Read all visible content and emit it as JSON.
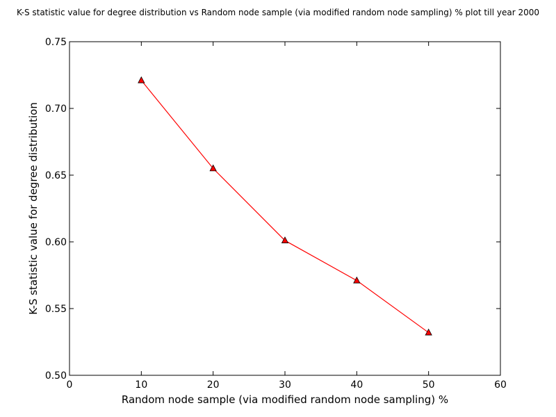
{
  "chart_data": {
    "type": "line",
    "title": "K-S statistic value for degree distribution vs Random node sample (via modified random node sampling) % plot till year 2000",
    "xlabel": "Random node sample (via modified random node sampling) %",
    "ylabel": "K-S statistic value for degree distribution",
    "xlim": [
      0,
      60
    ],
    "ylim": [
      0.5,
      0.75
    ],
    "x_ticks": [
      "0",
      "10",
      "20",
      "30",
      "40",
      "50",
      "60"
    ],
    "y_ticks": [
      "0.50",
      "0.55",
      "0.60",
      "0.65",
      "0.70",
      "0.75"
    ],
    "grid": false,
    "series": [
      {
        "color": "#ff0000",
        "marker": "triangle",
        "x": [
          10,
          20,
          30,
          40,
          50
        ],
        "y": [
          0.721,
          0.655,
          0.601,
          0.571,
          0.532
        ]
      }
    ]
  }
}
